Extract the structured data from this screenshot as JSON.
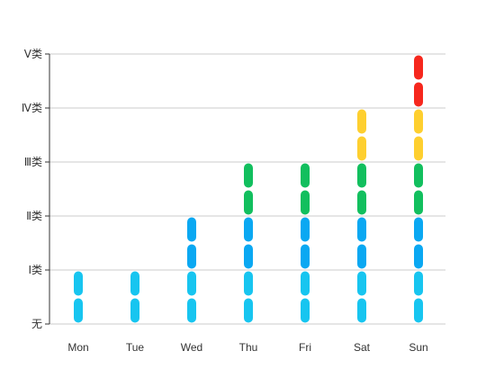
{
  "chart_data": {
    "type": "bar",
    "categories": [
      "Mon",
      "Tue",
      "Wed",
      "Thu",
      "Fri",
      "Sat",
      "Sun"
    ],
    "y_levels": [
      "无",
      "Ⅰ类",
      "Ⅱ类",
      "Ⅲ类",
      "Ⅳ类",
      "Ⅴ类"
    ],
    "values": [
      1,
      1,
      2,
      3,
      3,
      4,
      5
    ],
    "ylim": [
      0,
      5
    ],
    "grid": true,
    "segments_per_level": 2,
    "level_colors": [
      "#17c5f0",
      "#0aa8f2",
      "#12bf5e",
      "#fecf2f",
      "#f6271d"
    ]
  }
}
